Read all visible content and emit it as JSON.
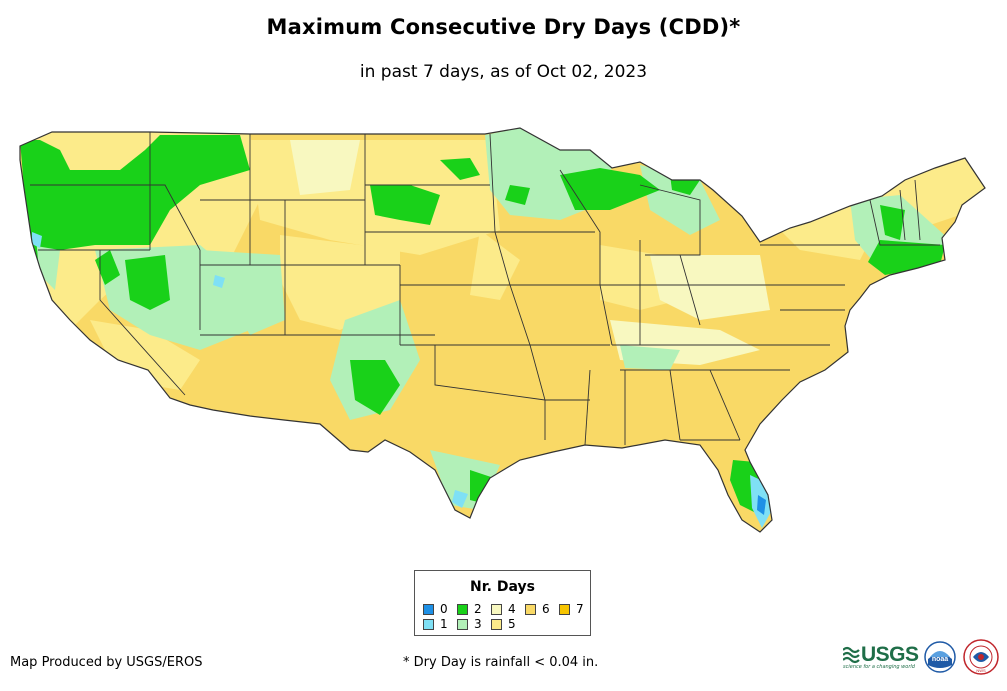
{
  "header": {
    "title": "Maximum Consecutive Dry Days (CDD)*",
    "subtitle": "in past 7 days, as of Oct 02, 2023"
  },
  "legend": {
    "title": "Nr. Days",
    "items": [
      {
        "label": "0",
        "color": "#1e90e6"
      },
      {
        "label": "1",
        "color": "#7fe0f5"
      },
      {
        "label": "2",
        "color": "#19d119"
      },
      {
        "label": "3",
        "color": "#b2f0b8"
      },
      {
        "label": "4",
        "color": "#f8f8c0"
      },
      {
        "label": "5",
        "color": "#fceb8a"
      },
      {
        "label": "6",
        "color": "#f9d966"
      },
      {
        "label": "7",
        "color": "#f7c500"
      }
    ]
  },
  "footer": {
    "credit": "Map Produced by USGS/EROS",
    "note": "* Dry Day is rainfall < 0.04 in."
  },
  "logos": {
    "usgs": "USGS",
    "usgs_tagline": "science for a changing world",
    "noaa": "noaa",
    "nws": "NWS"
  },
  "colors": {
    "state_border": "#333333",
    "usgs_green": "#1f6e48",
    "noaa_blue": "#1f5aa6"
  },
  "icons": [
    "usgs-logo-icon",
    "noaa-logo-icon",
    "nws-logo-icon"
  ]
}
